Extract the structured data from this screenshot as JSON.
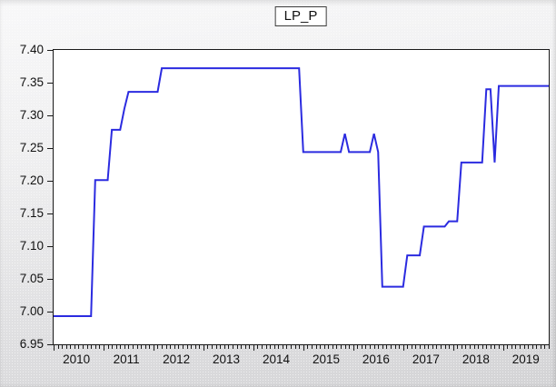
{
  "window": {
    "title_label": "LP_P"
  },
  "colors": {
    "line": "#2b2be0",
    "frame": "#1a1a1a",
    "plot_bg": "#ffffff",
    "text": "#111111"
  },
  "chart_data": {
    "type": "line",
    "title": "LP_P",
    "series_name": "LP_P",
    "frequency": "monthly",
    "x_start": "2010M01",
    "x_end": "2019M12",
    "n_obs": 120,
    "ylim": [
      6.95,
      7.4
    ],
    "y_tick_step": 0.05,
    "y_tick_labels": [
      "7.40",
      "7.35",
      "7.30",
      "7.25",
      "7.20",
      "7.15",
      "7.10",
      "7.05",
      "7.00",
      "6.95"
    ],
    "x_tick_labels": [
      "2010",
      "2011",
      "2012",
      "2013",
      "2014",
      "2015",
      "2016",
      "2017",
      "2018",
      "2019"
    ],
    "grid": "off",
    "legend_position": "none",
    "series_runs": [
      {
        "period_start": "2010M01",
        "count": 10,
        "value": 6.993
      },
      {
        "period_start": "2010M11",
        "count": 4,
        "value": 7.201
      },
      {
        "period_start": "2011M03",
        "count": 3,
        "value": 7.278
      },
      {
        "period_start": "2011M06",
        "count": 1,
        "value": 7.31
      },
      {
        "period_start": "2011M07",
        "count": 8,
        "value": 7.336
      },
      {
        "period_start": "2012M03",
        "count": 34,
        "value": 7.372
      },
      {
        "period_start": "2015M01",
        "count": 10,
        "value": 7.244
      },
      {
        "period_start": "2015M11",
        "count": 1,
        "value": 7.272
      },
      {
        "period_start": "2015M12",
        "count": 6,
        "value": 7.244
      },
      {
        "period_start": "2016M06",
        "count": 1,
        "value": 7.272
      },
      {
        "period_start": "2016M07",
        "count": 1,
        "value": 7.244
      },
      {
        "period_start": "2016M08",
        "count": 6,
        "value": 7.038
      },
      {
        "period_start": "2017M02",
        "count": 4,
        "value": 7.086
      },
      {
        "period_start": "2017M06",
        "count": 6,
        "value": 7.13
      },
      {
        "period_start": "2017M12",
        "count": 3,
        "value": 7.138
      },
      {
        "period_start": "2018M03",
        "count": 6,
        "value": 7.228
      },
      {
        "period_start": "2018M09",
        "count": 2,
        "value": 7.34
      },
      {
        "period_start": "2018M11",
        "count": 1,
        "value": 7.228
      },
      {
        "period_start": "2018M12",
        "count": 13,
        "value": 7.345
      }
    ]
  }
}
